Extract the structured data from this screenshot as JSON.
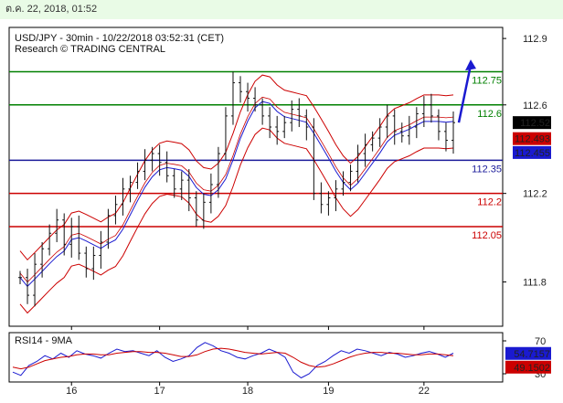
{
  "window": {
    "timestamp": "ต.ค. 22, 2018, 01:52"
  },
  "chart_data": {
    "type": "candlestick",
    "title": "USD/JPY - 30min - 10/22/2018 03:52:31 (CET)",
    "subtitle": "Research © TRADING CENTRAL",
    "y_ticks": [
      112.9,
      112.6,
      112.2,
      111.8
    ],
    "ylim": [
      111.6,
      112.95
    ],
    "x_ticks": [
      "16",
      "17",
      "18",
      "19",
      "22"
    ],
    "levels": [
      {
        "value": 112.75,
        "label": "112.75",
        "color": "#008000"
      },
      {
        "value": 112.6,
        "label": "112.6",
        "color": "#008000"
      },
      {
        "value": 112.35,
        "label": "112.35",
        "color": "#1a1a9a"
      },
      {
        "value": 112.2,
        "label": "112.2",
        "color": "#cc0000"
      },
      {
        "value": 112.05,
        "label": "112.05",
        "color": "#cc0000"
      }
    ],
    "price_tags": [
      {
        "value": "112.52",
        "bg": "#000000",
        "fg": "#ffffff"
      },
      {
        "value": "112.493",
        "bg": "#cc0000",
        "fg": "#ffffff"
      },
      {
        "value": "112.455",
        "bg": "#1a1ad0",
        "fg": "#ffffff"
      }
    ],
    "closes": [
      111.82,
      111.74,
      111.88,
      111.95,
      112.02,
      112.08,
      111.97,
      112.05,
      111.93,
      111.86,
      111.92,
      111.98,
      112.1,
      112.15,
      112.22,
      112.25,
      112.3,
      112.35,
      112.38,
      112.34,
      112.28,
      112.22,
      112.26,
      112.18,
      112.08,
      112.16,
      112.24,
      112.38,
      112.55,
      112.7,
      112.66,
      112.63,
      112.6,
      112.55,
      112.5,
      112.48,
      112.52,
      112.58,
      112.55,
      112.5,
      112.2,
      112.15,
      112.18,
      112.22,
      112.25,
      112.3,
      112.38,
      112.42,
      112.45,
      112.5,
      112.55,
      112.48,
      112.46,
      112.5,
      112.56,
      112.6,
      112.55,
      112.48,
      112.44,
      112.52
    ],
    "ma_upper": [
      111.95,
      111.98,
      112.05,
      112.1,
      112.12,
      112.15,
      112.16,
      112.18,
      112.18,
      112.2,
      112.25,
      112.32,
      112.38,
      112.42,
      112.45,
      112.46,
      112.44,
      112.42,
      112.4,
      112.44,
      112.55,
      112.75,
      112.88,
      112.85,
      112.72,
      112.62,
      112.6,
      112.62,
      112.66,
      112.7,
      112.65,
      112.78,
      112.82,
      112.7,
      112.55,
      112.45,
      112.48,
      112.54,
      112.56,
      112.58,
      112.6,
      112.62,
      112.63,
      112.6,
      112.58,
      112.55
    ],
    "rsi": {
      "title": "RSI14 - 9MA",
      "y_ticks": [
        70,
        30
      ],
      "ylim": [
        20,
        80
      ],
      "current": [
        {
          "value": "54.7157",
          "bg": "#1a1ad0",
          "fg": "#ffffff"
        },
        {
          "value": "49.1502",
          "bg": "#cc0000",
          "fg": "#ffffff"
        }
      ],
      "rsi_values": [
        32,
        28,
        40,
        45,
        52,
        48,
        55,
        50,
        58,
        54,
        52,
        49,
        55,
        60,
        57,
        58,
        55,
        52,
        58,
        50,
        45,
        48,
        52,
        62,
        68,
        64,
        58,
        55,
        50,
        48,
        52,
        55,
        60,
        56,
        50,
        32,
        25,
        30,
        40,
        45,
        52,
        58,
        55,
        60,
        58,
        55,
        52,
        56,
        54,
        50,
        52,
        55,
        57,
        54,
        50,
        55
      ],
      "ma_values": [
        38,
        36,
        38,
        42,
        46,
        48,
        50,
        51,
        53,
        54,
        54,
        53,
        53,
        55,
        56,
        57,
        57,
        56,
        56,
        55,
        53,
        51,
        51,
        53,
        57,
        60,
        61,
        60,
        58,
        56,
        55,
        54,
        55,
        56,
        55,
        50,
        44,
        40,
        38,
        39,
        42,
        46,
        50,
        53,
        55,
        56,
        56,
        55,
        55,
        54,
        53,
        53,
        54,
        54,
        53,
        52
      ]
    }
  }
}
